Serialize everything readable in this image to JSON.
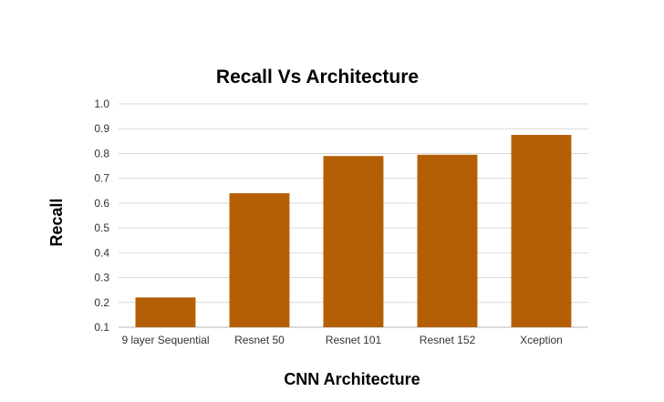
{
  "chart_data": {
    "type": "bar",
    "title": "Recall Vs Architecture",
    "xlabel": "CNN Architecture",
    "ylabel": "Recall",
    "categories": [
      "9 layer Sequential",
      "Resnet 50",
      "Resnet 101",
      "Resnet 152",
      "Xception"
    ],
    "values": [
      0.22,
      0.64,
      0.79,
      0.795,
      0.875
    ],
    "ylim": [
      0.1,
      1.0
    ],
    "yticks": [
      "0.1",
      "0.2",
      "0.3",
      "0.4",
      "0.5",
      "0.6",
      "0.7",
      "0.8",
      "0.9",
      "1.0"
    ],
    "grid": true,
    "legend": "none",
    "colors": {
      "bar": "#b45f06",
      "grid": "#d9d9d9",
      "axis": "#b7b7b7"
    }
  }
}
